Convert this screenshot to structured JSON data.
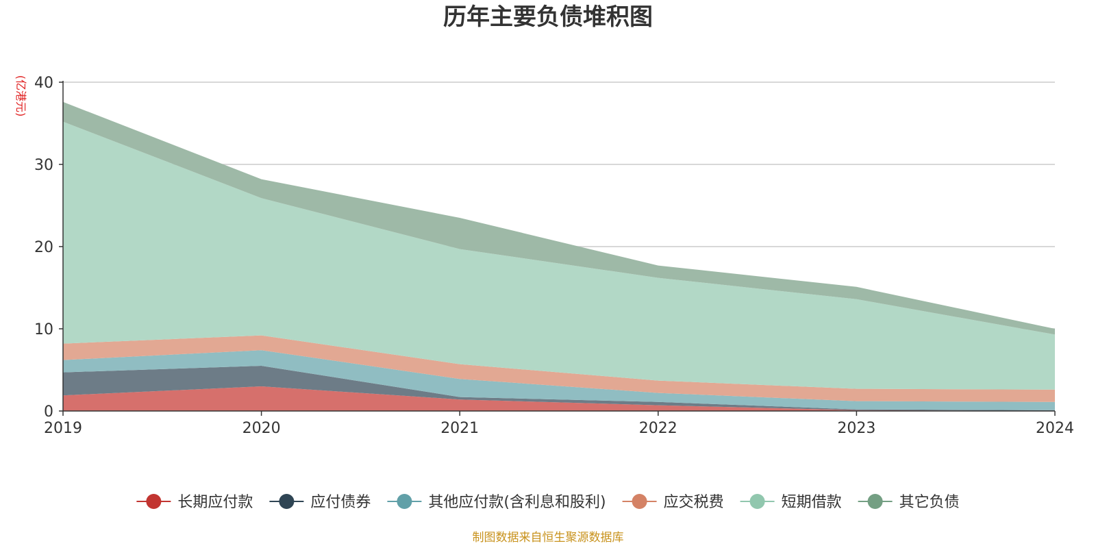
{
  "title": "历年主要负债堆积图",
  "unit": "(亿港元)",
  "source": "制图数据来自恒生聚源数据库",
  "chart_data": {
    "type": "area",
    "stacked": true,
    "title": "历年主要负债堆积图",
    "ylabel": "(亿港元)",
    "ylim": [
      0,
      40
    ],
    "yticks": [
      0,
      10,
      20,
      30,
      40
    ],
    "grid": true,
    "legend_position": "bottom",
    "x": [
      "2019",
      "2020",
      "2021",
      "2022",
      "2023",
      "2024"
    ],
    "series": [
      {
        "name": "长期应付款",
        "color": "#c23531",
        "fill": "#d6706c",
        "values": [
          1.9,
          3.0,
          1.4,
          0.7,
          0.1,
          0.0
        ]
      },
      {
        "name": "应付债券",
        "color": "#2f4554",
        "fill": "#6d7c87",
        "values": [
          2.8,
          2.5,
          0.3,
          0.4,
          0.1,
          0.1
        ]
      },
      {
        "name": "其他应付款(含利息和股利)",
        "color": "#61a0a8",
        "fill": "#90bdc2",
        "values": [
          1.5,
          1.9,
          2.2,
          1.1,
          1.0,
          1.0
        ]
      },
      {
        "name": "应交税费",
        "color": "#d48265",
        "fill": "#e2a893",
        "values": [
          2.0,
          1.8,
          1.8,
          1.5,
          1.5,
          1.5
        ]
      },
      {
        "name": "短期借款",
        "color": "#91c7ae",
        "fill": "#b2d8c6",
        "values": [
          27.0,
          16.7,
          14.0,
          12.5,
          10.9,
          6.7
        ]
      },
      {
        "name": "其它负债",
        "color": "#749f83",
        "fill": "#9eb9a7",
        "values": [
          2.4,
          2.3,
          3.8,
          1.5,
          1.5,
          0.7
        ]
      }
    ]
  }
}
